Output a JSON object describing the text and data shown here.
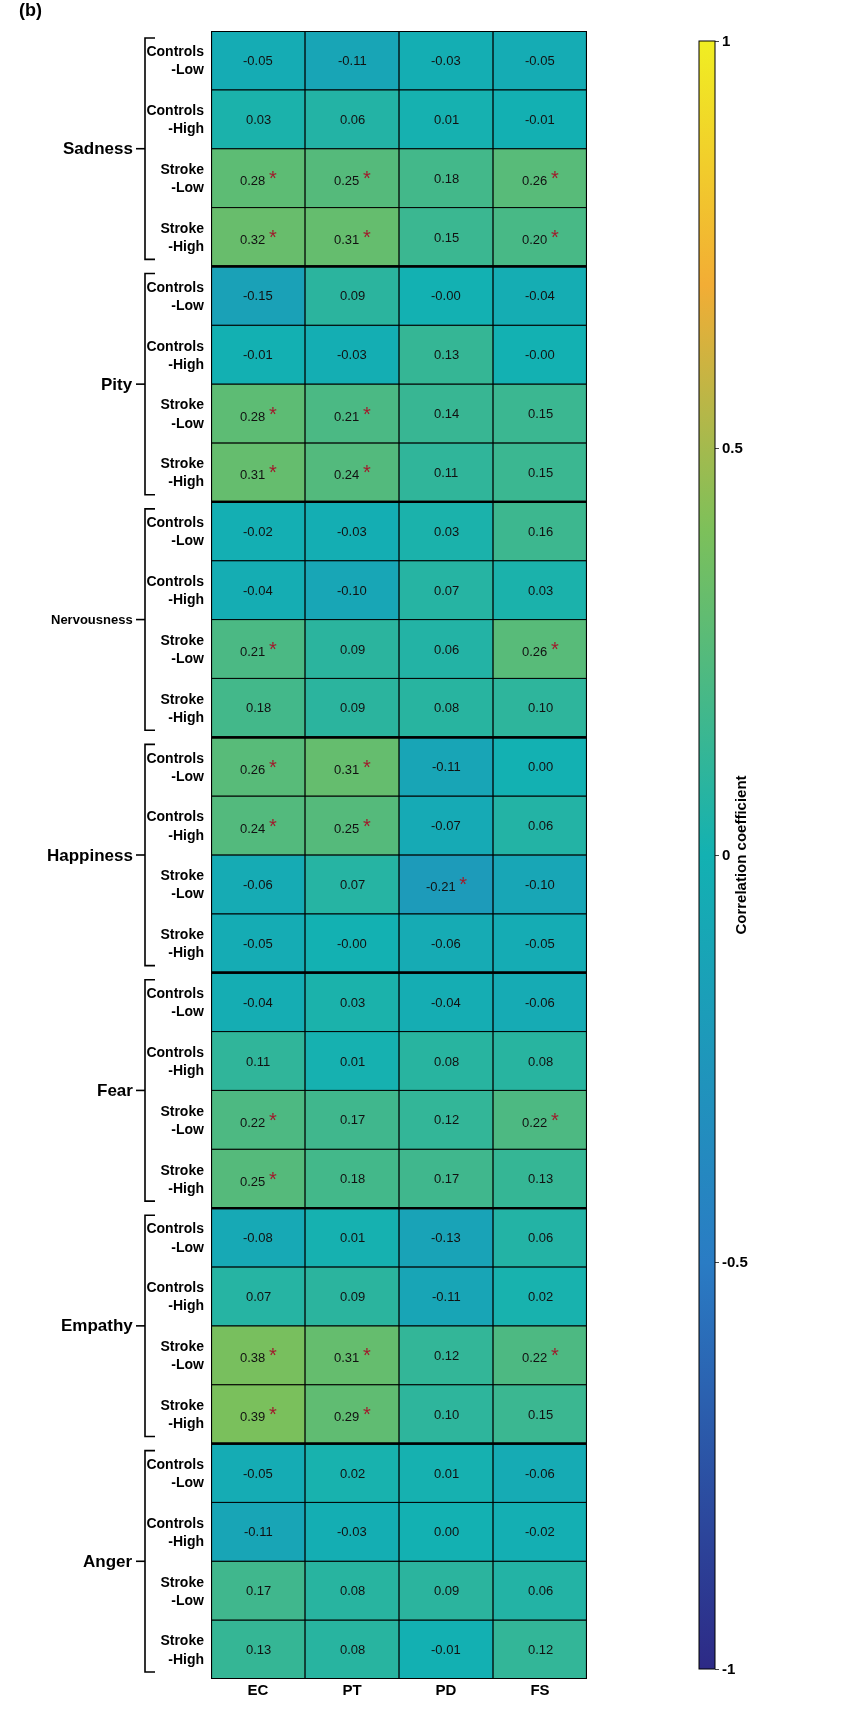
{
  "chart_data": {
    "type": "heatmap",
    "title": "(b)",
    "clabel": "Correlation coefficient",
    "categories": [
      "EC",
      "PT",
      "PD",
      "FS"
    ],
    "y_categories": [
      "Controls\n-Low",
      "Controls\n-High",
      "Stroke\n-Low",
      "Stroke\n-High",
      "Controls\n-Low",
      "Controls\n-High",
      "Stroke\n-Low",
      "Stroke\n-High",
      "Controls\n-Low",
      "Controls\n-High",
      "Stroke\n-Low",
      "Stroke\n-High",
      "Controls\n-Low",
      "Controls\n-High",
      "Stroke\n-Low",
      "Stroke\n-High",
      "Controls\n-Low",
      "Controls\n-High",
      "Stroke\n-Low",
      "Stroke\n-High",
      "Controls\n-Low",
      "Controls\n-High",
      "Stroke\n-Low",
      "Stroke\n-High",
      "Controls\n-Low",
      "Controls\n-High",
      "Stroke\n-Low",
      "Stroke\n-High"
    ],
    "annotations": [
      "Sadness",
      "Pity",
      "Nervousness",
      "Happiness",
      "Fear",
      "Empathy",
      "Anger"
    ],
    "cells": [
      [
        -0.05,
        -0.11,
        -0.03,
        -0.05
      ],
      [
        0.03,
        0.06,
        0.01,
        -0.01
      ],
      [
        0.28,
        0.25,
        0.18,
        0.26
      ],
      [
        0.32,
        0.31,
        0.15,
        0.2
      ],
      [
        -0.15,
        0.09,
        0,
        -0.04
      ],
      [
        -0.01,
        -0.03,
        0.13,
        0
      ],
      [
        0.28,
        0.21,
        0.14,
        0.15
      ],
      [
        0.31,
        0.24,
        0.11,
        0.15
      ],
      [
        -0.02,
        -0.03,
        0.03,
        0.16
      ],
      [
        -0.04,
        -0.1,
        0.07,
        0.03
      ],
      [
        0.21,
        0.09,
        0.06,
        0.26
      ],
      [
        0.18,
        0.09,
        0.08,
        0.1
      ],
      [
        0.26,
        0.31,
        -0.11,
        0.0
      ],
      [
        0.24,
        0.25,
        -0.07,
        0.06
      ],
      [
        -0.06,
        0.07,
        -0.21,
        -0.1
      ],
      [
        -0.05,
        0,
        -0.06,
        -0.05
      ],
      [
        -0.04,
        0.03,
        -0.04,
        -0.06
      ],
      [
        0.11,
        0.01,
        0.08,
        0.08
      ],
      [
        0.22,
        0.17,
        0.12,
        0.22
      ],
      [
        0.25,
        0.18,
        0.17,
        0.13
      ],
      [
        -0.08,
        0.01,
        -0.13,
        0.06
      ],
      [
        0.07,
        0.09,
        -0.11,
        0.02
      ],
      [
        0.38,
        0.31,
        0.12,
        0.22
      ],
      [
        0.39,
        0.29,
        0.1,
        0.15
      ],
      [
        -0.05,
        0.02,
        0.01,
        -0.06
      ],
      [
        -0.11,
        -0.03,
        0.0,
        -0.02
      ],
      [
        0.17,
        0.08,
        0.09,
        0.06
      ],
      [
        0.13,
        0.08,
        -0.01,
        0.12
      ]
    ],
    "cell_labels": [
      [
        "-0.05",
        "-0.11",
        "-0.03",
        "-0.05"
      ],
      [
        "0.03",
        "0.06",
        "0.01",
        "-0.01"
      ],
      [
        "0.28 *",
        "0.25 *",
        "0.18",
        "0.26 *"
      ],
      [
        "0.32 *",
        "0.31 *",
        "0.15",
        "0.20 *"
      ],
      [
        "-0.15",
        "0.09",
        "-0.00",
        "-0.04"
      ],
      [
        "-0.01",
        "-0.03",
        "0.13",
        "-0.00"
      ],
      [
        "0.28 *",
        "0.21 *",
        "0.14",
        "0.15"
      ],
      [
        "0.31 *",
        "0.24 *",
        "0.11",
        "0.15"
      ],
      [
        "-0.02",
        "-0.03",
        "0.03",
        "0.16"
      ],
      [
        "-0.04",
        "-0.10",
        "0.07",
        "0.03"
      ],
      [
        "0.21 *",
        "0.09",
        "0.06",
        "0.26 *"
      ],
      [
        "0.18",
        "0.09",
        "0.08",
        "0.10"
      ],
      [
        "0.26 *",
        "0.31 *",
        "-0.11",
        "0.00"
      ],
      [
        "0.24 *",
        "0.25 *",
        "-0.07",
        "0.06"
      ],
      [
        "-0.06",
        "0.07",
        "-0.21 *",
        "-0.10"
      ],
      [
        "-0.05",
        "-0.00",
        "-0.06",
        "-0.05"
      ],
      [
        "-0.04",
        "0.03",
        "-0.04",
        "-0.06"
      ],
      [
        "0.11",
        "0.01",
        "0.08",
        "0.08"
      ],
      [
        "0.22 *",
        "0.17",
        "0.12",
        "0.22 *"
      ],
      [
        "0.25 *",
        "0.18",
        "0.17",
        "0.13"
      ],
      [
        "-0.08",
        "0.01",
        "-0.13",
        "0.06"
      ],
      [
        "0.07",
        "0.09",
        "-0.11",
        "0.02"
      ],
      [
        "0.38 *",
        "0.31 *",
        "0.12",
        "0.22 *"
      ],
      [
        "0.39 *",
        "0.29 *",
        "0.10",
        "0.15"
      ],
      [
        "-0.05",
        "0.02",
        "0.01",
        "-0.06"
      ],
      [
        "-0.11",
        "-0.03",
        "0.00",
        "-0.02"
      ],
      [
        "0.17",
        "0.08",
        "0.09",
        "0.06"
      ],
      [
        "0.13",
        "0.08",
        "-0.01",
        "0.12"
      ]
    ],
    "clim": [
      -1,
      1
    ],
    "cticks": [
      1,
      0.5,
      0,
      -0.5,
      -1
    ]
  }
}
